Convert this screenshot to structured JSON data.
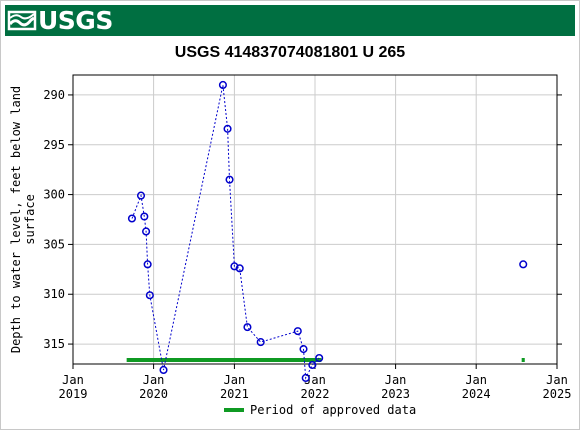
{
  "brand": {
    "logo_text": "USGS",
    "banner_color": "#006f41"
  },
  "chart_data": {
    "type": "scatter",
    "title": "USGS 414837074081801 U 265",
    "ylabel": "Depth to water level, feet below land surface",
    "ylabel_lines": [
      "Depth to water level, feet below land",
      "surface"
    ],
    "y_inverted": true,
    "ylim": [
      317,
      288
    ],
    "y_ticks": [
      290,
      295,
      300,
      305,
      310,
      315
    ],
    "x_ticks": [
      {
        "date": "2019-01-01",
        "top": "Jan",
        "bottom": "2019"
      },
      {
        "date": "2020-01-01",
        "top": "Jan",
        "bottom": "2020"
      },
      {
        "date": "2021-01-01",
        "top": "Jan",
        "bottom": "2021"
      },
      {
        "date": "2022-01-01",
        "top": "Jan",
        "bottom": "2022"
      },
      {
        "date": "2023-01-01",
        "top": "Jan",
        "bottom": "2023"
      },
      {
        "date": "2024-01-01",
        "top": "Jan",
        "bottom": "2024"
      },
      {
        "date": "2025-01-01",
        "top": "Jan",
        "bottom": "2025"
      }
    ],
    "xlim": [
      "2019-01-01",
      "2025-01-01"
    ],
    "grid": true,
    "series_color": "#0000cc",
    "points": [
      {
        "date": "2019-09-25",
        "value": 302.4
      },
      {
        "date": "2019-11-05",
        "value": 300.1
      },
      {
        "date": "2019-11-20",
        "value": 302.2
      },
      {
        "date": "2019-11-28",
        "value": 303.7
      },
      {
        "date": "2019-12-05",
        "value": 307.0
      },
      {
        "date": "2019-12-15",
        "value": 310.1
      },
      {
        "date": "2020-02-15",
        "value": 317.6
      },
      {
        "date": "2020-11-10",
        "value": 289.0
      },
      {
        "date": "2020-12-01",
        "value": 293.4
      },
      {
        "date": "2020-12-10",
        "value": 298.5
      },
      {
        "date": "2021-01-01",
        "value": 307.2
      },
      {
        "date": "2021-01-25",
        "value": 307.4
      },
      {
        "date": "2021-03-01",
        "value": 313.3
      },
      {
        "date": "2021-04-30",
        "value": 314.8
      },
      {
        "date": "2021-10-15",
        "value": 313.7
      },
      {
        "date": "2021-11-10",
        "value": 315.5
      },
      {
        "date": "2021-11-20",
        "value": 318.4
      },
      {
        "date": "2021-12-20",
        "value": 317.1
      },
      {
        "date": "2022-01-20",
        "value": 316.4
      },
      {
        "date": "2024-08-01",
        "value": 307.0
      }
    ],
    "approved_periods": [
      {
        "start": "2019-09-01",
        "end": "2022-01-30"
      },
      {
        "start": "2024-07-25",
        "end": "2024-08-08"
      }
    ],
    "approved_color": "#0f9a23",
    "legend": {
      "label": "Period of approved data",
      "placement": "bottom"
    }
  }
}
